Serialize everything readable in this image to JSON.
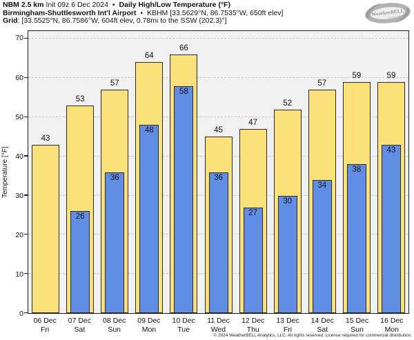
{
  "header": {
    "line1": {
      "model": "NBM 2.5 km",
      "init": " Init 09z 6 Dec 2024 ",
      "sep": "•",
      "product": " Daily High/Low Temperature (°F)"
    },
    "line2": {
      "station": "Birmingham-Shuttlesworth Int'l Airport ",
      "sep": "•",
      "station_info": " KBHM [33.5629°N, 86.7535°W, 650ft elev]"
    },
    "line3": {
      "label": "Grid",
      "info": ": [33.5525°N, 86.7586°W, 604ft elev, 0.78mi to the SSW (202.3)°]"
    },
    "logo": {
      "text": "WeatherBELL",
      "subtext": "Analytics LLC"
    }
  },
  "chart_data": {
    "type": "bar",
    "title": "Daily High/Low Temperature (°F)",
    "ylabel": "Temperature [°F]",
    "ylim": [
      0,
      72
    ],
    "yticks": [
      0,
      10,
      20,
      30,
      40,
      50,
      60,
      70
    ],
    "grid": "dashed-horizontal",
    "legend_position": "none",
    "categories": [
      "06 Dec",
      "07 Dec",
      "08 Dec",
      "09 Dec",
      "10 Dec",
      "11 Dec",
      "12 Dec",
      "13 Dec",
      "14 Dec",
      "15 Dec",
      "16 Dec"
    ],
    "day_labels": [
      "Fri",
      "Sat",
      "Sun",
      "Mon",
      "Tue",
      "Wed",
      "Thu",
      "Fri",
      "Sat",
      "Sun",
      "Mon"
    ],
    "series": [
      {
        "name": "Daily High",
        "color": "#FBE17A",
        "values": [
          43,
          53,
          57,
          64,
          66,
          45,
          47,
          52,
          57,
          59,
          59
        ]
      },
      {
        "name": "Daily Low",
        "color": "#618EE4",
        "values": [
          null,
          26,
          36,
          48,
          58,
          36,
          27,
          30,
          34,
          38,
          43
        ]
      }
    ],
    "colors": {
      "plot_background": "#f1f1f1",
      "bar_outline": "#2a2a2a",
      "gridline": "#c9c9c9"
    }
  },
  "footer": {
    "copyright": "© 2024 WeatherBELL Analytics, LLC. All rights reserved. License required for commercial distribution."
  }
}
